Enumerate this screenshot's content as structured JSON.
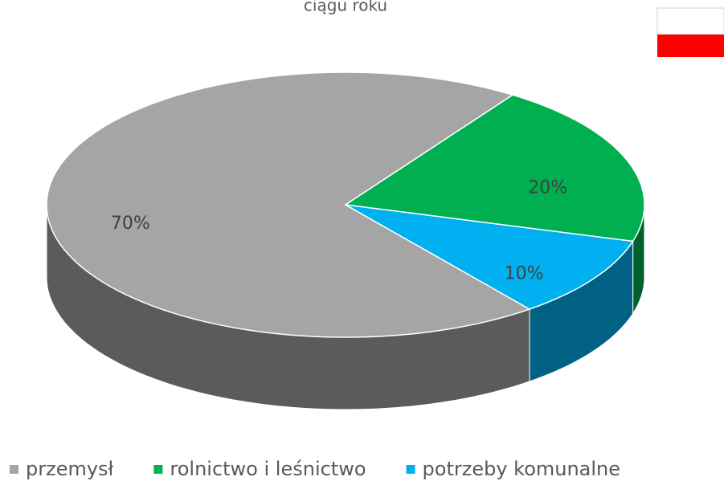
{
  "chart_data": {
    "type": "pie",
    "title": "ciągu roku",
    "categories": [
      "przemysł",
      "rolnictwo i leśnictwo",
      "potrzeby komunalne"
    ],
    "values": [
      70,
      20,
      10
    ],
    "value_labels": [
      "70%",
      "20%",
      "10%"
    ],
    "colors": [
      "#a5a5a5",
      "#00b050",
      "#00b0f0"
    ],
    "legend": "bottom"
  }
}
